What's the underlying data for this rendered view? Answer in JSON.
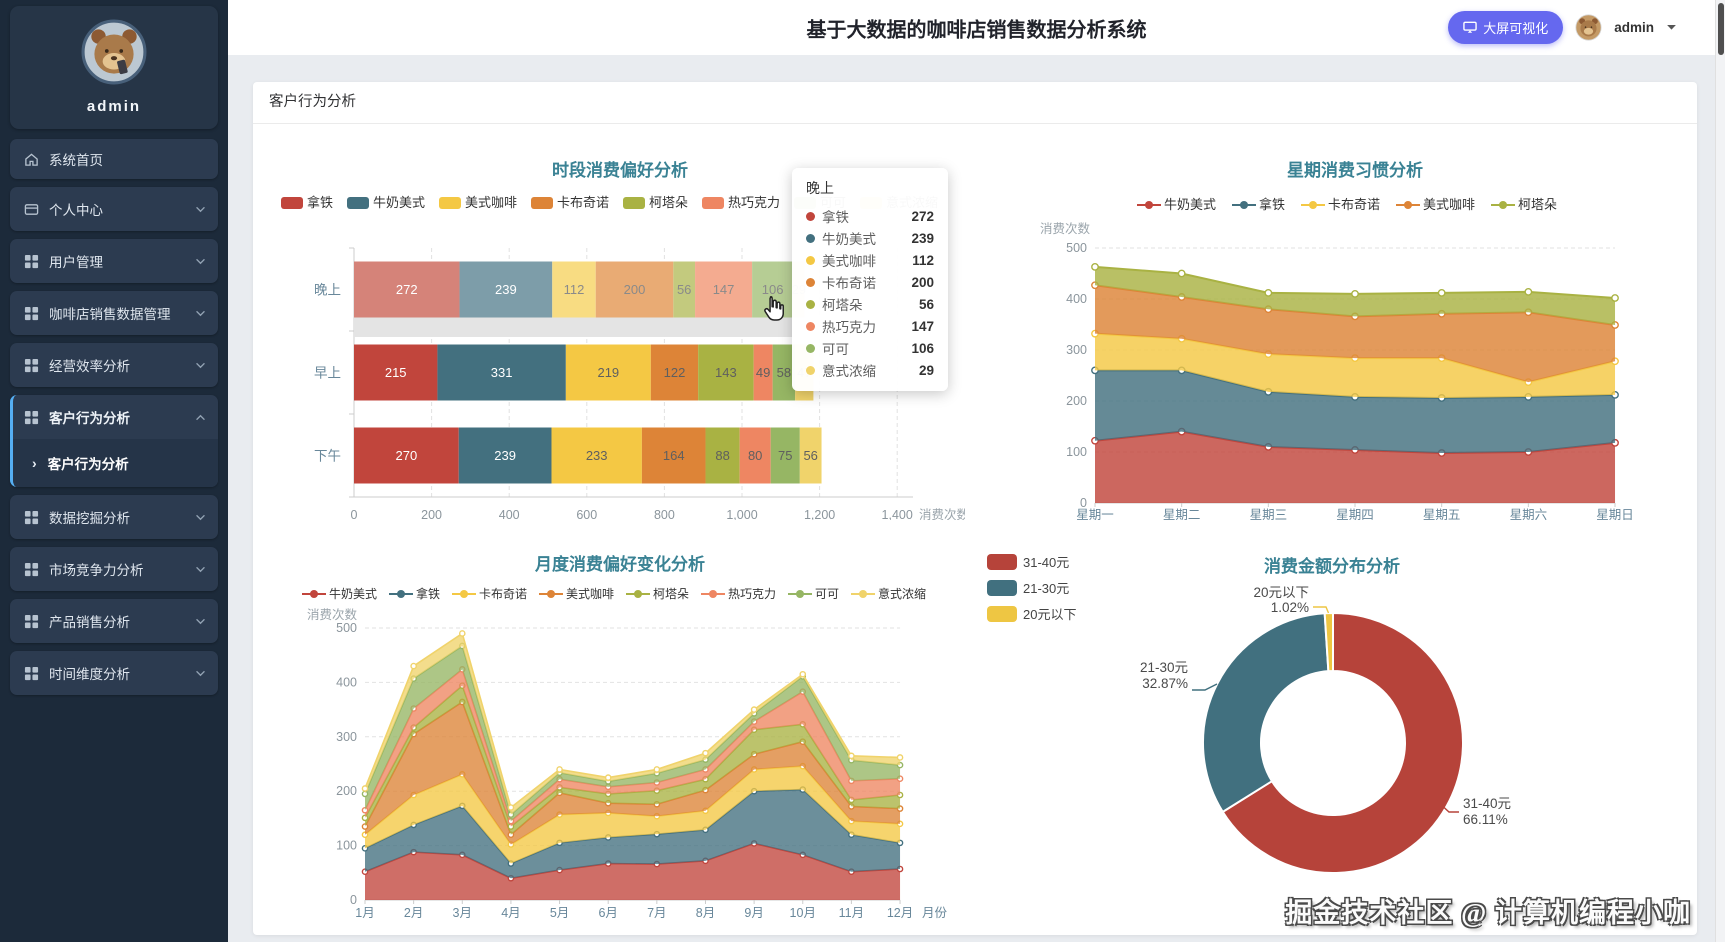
{
  "app": {
    "title": "基于大数据的咖啡店销售数据分析系统",
    "visual_button": "大屏可视化",
    "username": "admin",
    "section_title": "客户行为分析",
    "watermark": "掘金技术社区 @ 计算机编程小咖"
  },
  "sidebar": {
    "username": "admin",
    "items": [
      {
        "key": "home",
        "label": "系统首页",
        "icon": "home",
        "expandable": false
      },
      {
        "key": "profile",
        "label": "个人中心",
        "icon": "card",
        "expandable": true
      },
      {
        "key": "user-mgmt",
        "label": "用户管理",
        "icon": "grid",
        "expandable": true
      },
      {
        "key": "sales-data",
        "label": "咖啡店销售数据管理",
        "icon": "grid",
        "expandable": true
      },
      {
        "key": "efficiency",
        "label": "经营效率分析",
        "icon": "grid",
        "expandable": true
      },
      {
        "key": "behavior",
        "label": "客户行为分析",
        "icon": "grid",
        "expandable": true,
        "expanded": true,
        "active": true,
        "children": [
          {
            "key": "behavior-sub",
            "label": "客户行为分析",
            "active": true
          }
        ]
      },
      {
        "key": "mining",
        "label": "数据挖掘分析",
        "icon": "grid",
        "expandable": true
      },
      {
        "key": "market",
        "label": "市场竞争力分析",
        "icon": "grid",
        "expandable": true
      },
      {
        "key": "product",
        "label": "产品销售分析",
        "icon": "grid",
        "expandable": true
      },
      {
        "key": "time-dim",
        "label": "时间维度分析",
        "icon": "grid",
        "expandable": true
      }
    ]
  },
  "tooltip": {
    "category": "晚上"
  },
  "chart_data": [
    {
      "id": "time-preference",
      "type": "bar",
      "stacked": true,
      "orientation": "horizontal",
      "title": "时段消费偏好分析",
      "axis_name": "消费次数",
      "categories": [
        "晚上",
        "早上",
        "下午"
      ],
      "highlighted_category": "晚上",
      "xlim": [
        0,
        1400
      ],
      "xticks": [
        "0",
        "200",
        "400",
        "600",
        "800",
        "1,000",
        "1,200",
        "1,400"
      ],
      "series": [
        {
          "name": "拿铁",
          "color": "#c1453c",
          "hover_color": "#d58379",
          "values": [
            272,
            215,
            270
          ]
        },
        {
          "name": "牛奶美式",
          "color": "#43707f",
          "hover_color": "#7d9da9",
          "values": [
            239,
            331,
            239
          ]
        },
        {
          "name": "美式咖啡",
          "color": "#f4c844",
          "hover_color": "#f8dc82",
          "values": [
            112,
            219,
            233
          ]
        },
        {
          "name": "卡布奇诺",
          "color": "#dd8437",
          "hover_color": "#e9ab74",
          "values": [
            200,
            122,
            164
          ]
        },
        {
          "name": "柯塔朵",
          "color": "#a9b243",
          "hover_color": "#c3ca7e",
          "values": [
            56,
            143,
            88
          ]
        },
        {
          "name": "热巧克力",
          "color": "#ee8662",
          "hover_color": "#f4ab90",
          "values": [
            147,
            49,
            80
          ]
        },
        {
          "name": "可可",
          "color": "#96b664",
          "hover_color": "#b6cd94",
          "values": [
            106,
            58,
            75
          ]
        },
        {
          "name": "意式浓缩",
          "color": "#f0d36b",
          "hover_color": "#f6e29c",
          "values": [
            29,
            47,
            56
          ]
        }
      ]
    },
    {
      "id": "week-habit",
      "type": "area",
      "stacked": true,
      "title": "星期消费习惯分析",
      "y_axis_name": "消费次数",
      "ylim": [
        0,
        500
      ],
      "yticks": [
        "0",
        "100",
        "200",
        "300",
        "400",
        "500"
      ],
      "categories": [
        "星期一",
        "星期二",
        "星期三",
        "星期四",
        "星期五",
        "星期六",
        "星期日"
      ],
      "series": [
        {
          "name": "牛奶美式",
          "color": "#c1453c",
          "values": [
            122,
            140,
            110,
            104,
            98,
            100,
            118
          ]
        },
        {
          "name": "拿铁",
          "color": "#43707f",
          "values": [
            138,
            120,
            108,
            104,
            108,
            108,
            94
          ]
        },
        {
          "name": "卡布奇诺",
          "color": "#f4c844",
          "values": [
            72,
            62,
            74,
            76,
            78,
            29,
            66
          ]
        },
        {
          "name": "美式咖啡",
          "color": "#dd8437",
          "values": [
            95,
            82,
            88,
            82,
            87,
            137,
            71
          ]
        },
        {
          "name": "柯塔朵",
          "color": "#a9b243",
          "values": [
            36,
            46,
            32,
            44,
            41,
            40,
            53
          ]
        }
      ]
    },
    {
      "id": "month-preference",
      "type": "area",
      "stacked": true,
      "title": "月度消费偏好变化分析",
      "y_axis_name": "消费次数",
      "x_axis_name": "月份",
      "ylim": [
        0,
        500
      ],
      "yticks": [
        "0",
        "100",
        "200",
        "300",
        "400",
        "500"
      ],
      "categories": [
        "1月",
        "2月",
        "3月",
        "4月",
        "5月",
        "6月",
        "7月",
        "8月",
        "9月",
        "10月",
        "11月",
        "12月"
      ],
      "series": [
        {
          "name": "牛奶美式",
          "color": "#c1453c",
          "values": [
            52,
            88,
            83,
            40,
            55,
            67,
            66,
            72,
            104,
            83,
            52,
            57
          ]
        },
        {
          "name": "拿铁",
          "color": "#43707f",
          "values": [
            43,
            50,
            90,
            27,
            50,
            48,
            55,
            57,
            96,
            120,
            68,
            48
          ]
        },
        {
          "name": "卡布奇诺",
          "color": "#f4c844",
          "values": [
            25,
            55,
            58,
            35,
            52,
            45,
            33,
            35,
            40,
            43,
            25,
            35
          ]
        },
        {
          "name": "美式咖啡",
          "color": "#dd8437",
          "values": [
            15,
            112,
            133,
            18,
            40,
            18,
            22,
            38,
            28,
            45,
            27,
            28
          ]
        },
        {
          "name": "柯塔朵",
          "color": "#a9b243",
          "values": [
            16,
            12,
            30,
            15,
            10,
            17,
            25,
            20,
            45,
            32,
            12,
            25
          ]
        },
        {
          "name": "热巧克力",
          "color": "#ee8662",
          "values": [
            14,
            35,
            30,
            10,
            15,
            13,
            15,
            18,
            15,
            60,
            35,
            30
          ]
        },
        {
          "name": "可可",
          "color": "#96b664",
          "values": [
            30,
            55,
            43,
            12,
            12,
            10,
            17,
            18,
            15,
            28,
            38,
            25
          ]
        },
        {
          "name": "意式浓缩",
          "color": "#f0d36b",
          "values": [
            10,
            23,
            23,
            13,
            6,
            7,
            7,
            12,
            7,
            4,
            8,
            14
          ]
        }
      ]
    },
    {
      "id": "amount-distribution",
      "type": "pie",
      "donut": true,
      "title": "消费金额分布分析",
      "slices": [
        {
          "name": "31-40元",
          "pct": 66.11,
          "color": "#b6433a"
        },
        {
          "name": "21-30元",
          "pct": 32.87,
          "color": "#41707f"
        },
        {
          "name": "20元以下",
          "pct": 1.02,
          "color": "#eec643"
        }
      ]
    }
  ]
}
